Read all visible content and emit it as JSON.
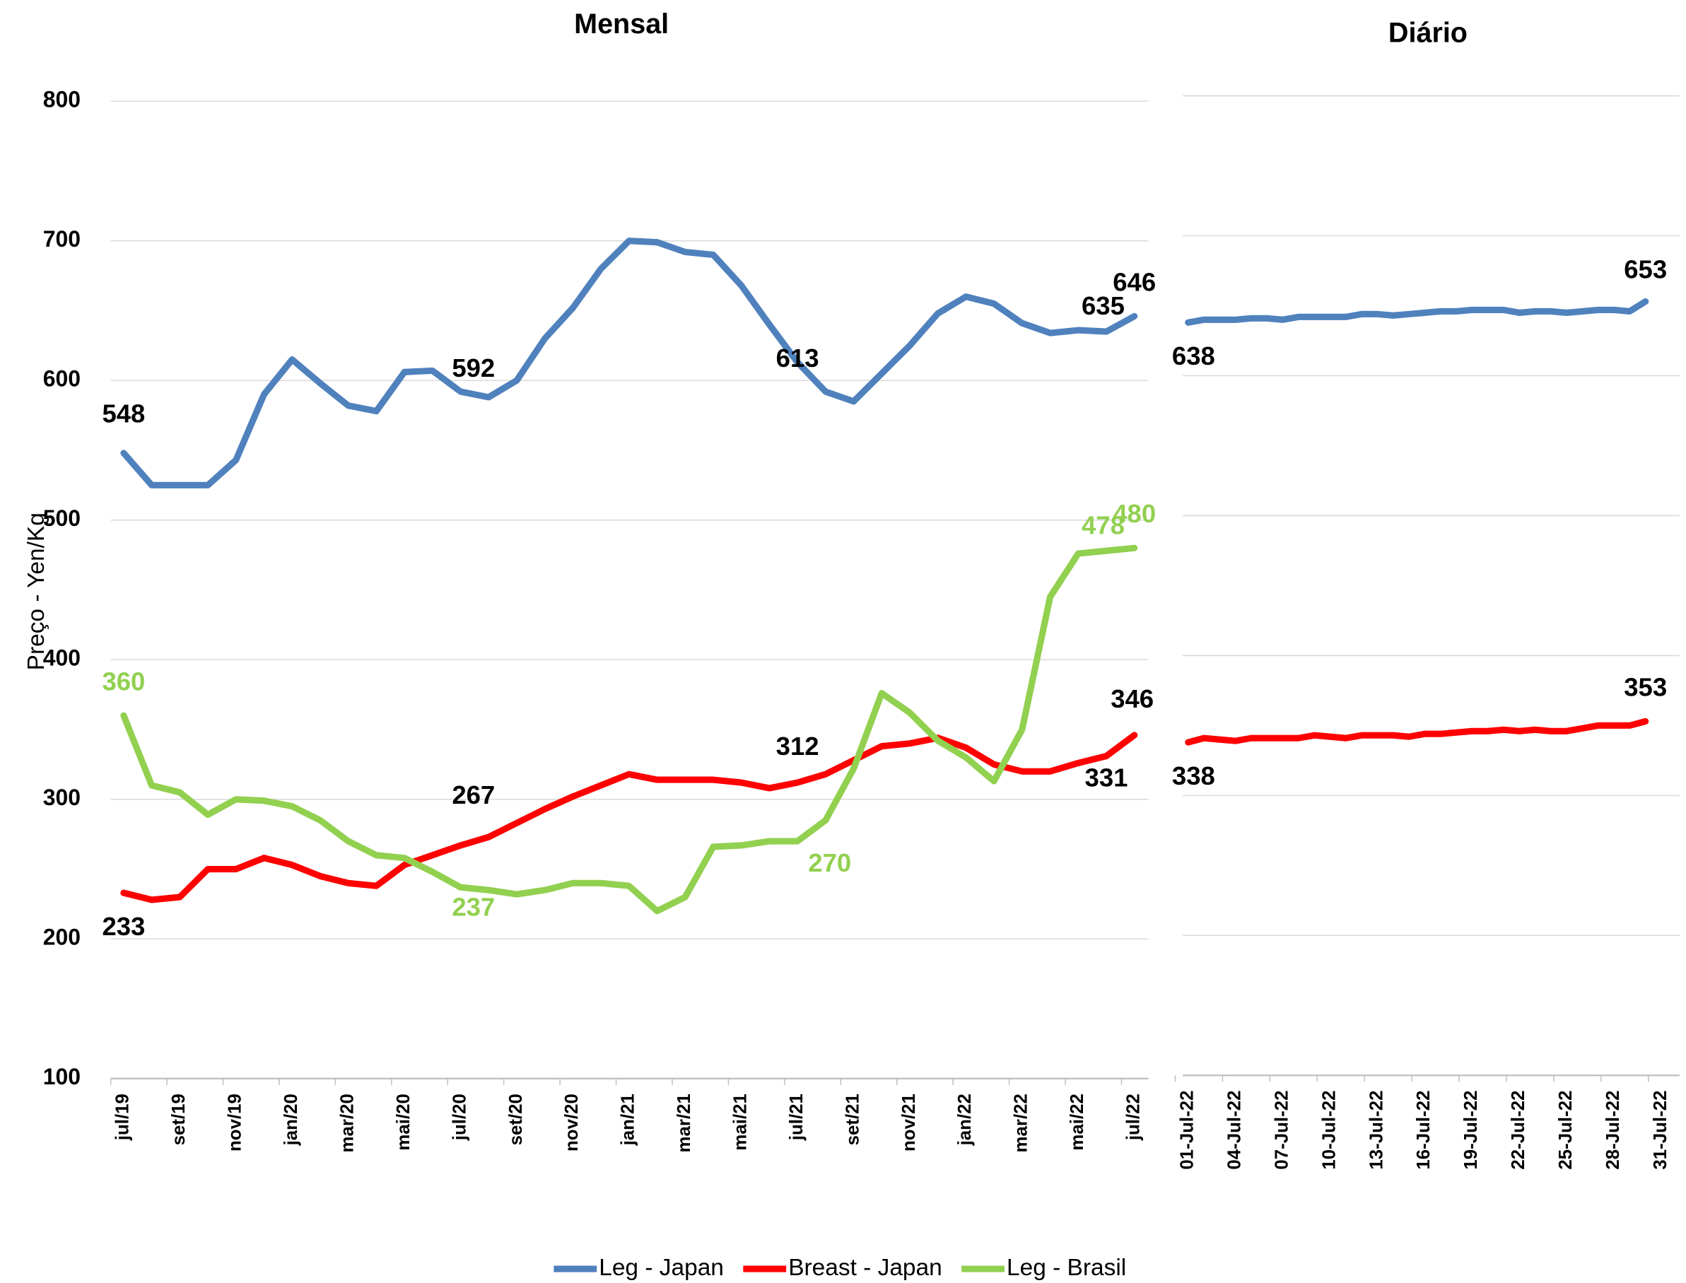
{
  "chart_data": [
    {
      "type": "line",
      "title": "Mensal",
      "y_label": "Preço - Yen/Kg",
      "categories": [
        "jul/19",
        null,
        "set/19",
        null,
        "nov/19",
        null,
        "jan/20",
        null,
        "mar/20",
        null,
        "mai/20",
        null,
        "jul/20",
        null,
        "set/20",
        null,
        "nov/20",
        null,
        "jan/21",
        null,
        "mar/21",
        null,
        "mai/21",
        null,
        "jul/21",
        null,
        "set/21",
        null,
        "nov/21",
        null,
        "jan/22",
        null,
        "mar/22",
        null,
        "mai/22",
        null,
        "jul/22"
      ],
      "ylim": [
        100,
        800
      ],
      "yticks": [
        100,
        200,
        300,
        400,
        500,
        600,
        700,
        800
      ],
      "grid": true,
      "series": [
        {
          "name": "Leg - Japan",
          "color": "#4f81bd",
          "values": [
            548,
            525,
            525,
            525,
            543,
            590,
            615,
            598,
            582,
            578,
            606,
            607,
            592,
            588,
            600,
            630,
            652,
            680,
            700,
            699,
            692,
            690,
            668,
            640,
            613,
            592,
            585,
            605,
            625,
            648,
            660,
            655,
            641,
            634,
            636,
            635,
            646
          ],
          "value_labels": [
            "548",
            null,
            null,
            null,
            null,
            null,
            null,
            null,
            null,
            null,
            null,
            null,
            "592",
            null,
            null,
            null,
            null,
            null,
            null,
            null,
            null,
            null,
            null,
            null,
            "613",
            null,
            null,
            null,
            null,
            null,
            null,
            null,
            null,
            null,
            null,
            "635",
            "646"
          ]
        },
        {
          "name": "Breast - Japan",
          "color": "#ff0000",
          "values": [
            233,
            228,
            230,
            250,
            250,
            258,
            253,
            245,
            240,
            238,
            253,
            260,
            267,
            273,
            283,
            293,
            302,
            310,
            318,
            314,
            314,
            314,
            312,
            308,
            312,
            318,
            328,
            338,
            340,
            344,
            337,
            325,
            320,
            320,
            326,
            331,
            346
          ],
          "value_labels": [
            "233",
            null,
            null,
            null,
            null,
            null,
            null,
            null,
            null,
            null,
            null,
            null,
            "267",
            null,
            null,
            null,
            null,
            null,
            null,
            null,
            null,
            null,
            null,
            null,
            "312",
            null,
            null,
            null,
            null,
            null,
            null,
            null,
            null,
            null,
            null,
            "331",
            "346"
          ]
        },
        {
          "name": "Leg - Brasil",
          "color": "#92d050",
          "values": [
            360,
            310,
            305,
            289,
            300,
            299,
            295,
            285,
            270,
            260,
            258,
            248,
            237,
            235,
            232,
            235,
            240,
            240,
            238,
            220,
            230,
            266,
            267,
            270,
            270,
            285,
            322,
            376,
            362,
            342,
            330,
            313,
            350,
            445,
            476,
            478,
            480
          ],
          "value_labels": [
            "360",
            null,
            null,
            null,
            null,
            null,
            null,
            null,
            null,
            null,
            null,
            null,
            "237",
            null,
            null,
            null,
            null,
            null,
            null,
            null,
            null,
            null,
            null,
            null,
            "270",
            null,
            null,
            null,
            null,
            null,
            null,
            null,
            null,
            null,
            null,
            "478",
            "480"
          ]
        }
      ]
    },
    {
      "type": "line",
      "title": "Diário",
      "categories": [
        "01-Jul-22",
        null,
        null,
        "04-Jul-22",
        null,
        null,
        "07-Jul-22",
        null,
        null,
        "10-Jul-22",
        null,
        null,
        "13-Jul-22",
        null,
        null,
        "16-Jul-22",
        null,
        null,
        "19-Jul-22",
        null,
        null,
        "22-Jul-22",
        null,
        null,
        "25-Jul-22",
        null,
        null,
        "28-Jul-22",
        null,
        null,
        "31-Jul-22"
      ],
      "ylim": [
        100,
        800
      ],
      "yticks": [
        100,
        200,
        300,
        400,
        500,
        600,
        700,
        800
      ],
      "grid": true,
      "series": [
        {
          "color": "#4f81bd",
          "values": [
            638,
            640,
            640,
            640,
            641,
            641,
            640,
            642,
            642,
            642,
            642,
            644,
            644,
            643,
            644,
            645,
            646,
            646,
            647,
            647,
            647,
            645,
            646,
            646,
            645,
            646,
            647,
            647,
            646,
            653,
            null
          ],
          "value_labels": [
            "638",
            null,
            null,
            null,
            null,
            null,
            null,
            null,
            null,
            null,
            null,
            null,
            null,
            null,
            null,
            null,
            null,
            null,
            null,
            null,
            null,
            null,
            null,
            null,
            null,
            null,
            null,
            null,
            null,
            "653",
            null
          ]
        },
        {
          "color": "#ff0000",
          "values": [
            338,
            341,
            340,
            339,
            341,
            341,
            341,
            341,
            343,
            342,
            341,
            343,
            343,
            343,
            342,
            344,
            344,
            345,
            346,
            346,
            347,
            346,
            347,
            346,
            346,
            348,
            350,
            350,
            350,
            353,
            null
          ],
          "value_labels": [
            "338",
            null,
            null,
            null,
            null,
            null,
            null,
            null,
            null,
            null,
            null,
            null,
            null,
            null,
            null,
            null,
            null,
            null,
            null,
            null,
            null,
            null,
            null,
            null,
            null,
            null,
            null,
            null,
            null,
            "353",
            null
          ]
        }
      ]
    }
  ]
}
